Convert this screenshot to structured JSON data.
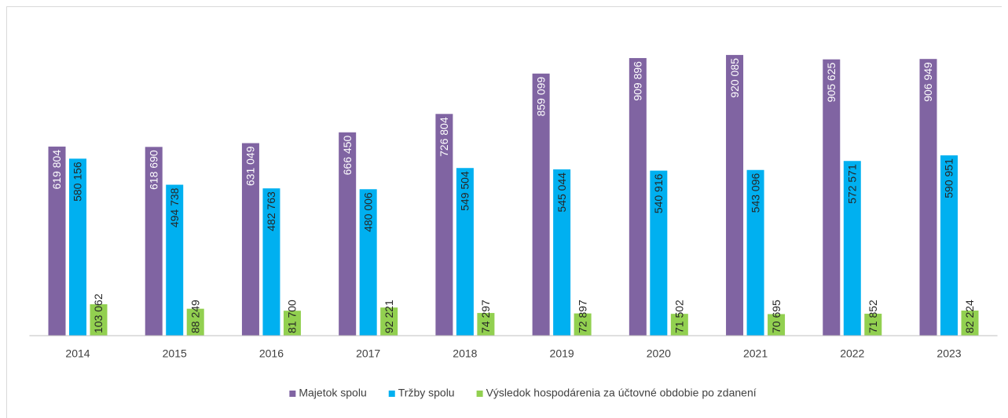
{
  "chart_data": {
    "type": "bar",
    "categories": [
      "2014",
      "2015",
      "2016",
      "2017",
      "2018",
      "2019",
      "2020",
      "2021",
      "2022",
      "2023"
    ],
    "series": [
      {
        "name": "Majetok spolu",
        "color": "#8064a2",
        "values": [
          619804,
          618690,
          631049,
          666450,
          726804,
          859099,
          909896,
          920085,
          905625,
          906949
        ],
        "value_labels": [
          "619 804",
          "618 690",
          "631 049",
          "666 450",
          "726 804",
          "859 099",
          "909 896",
          "920 085",
          "905 625",
          "906 949"
        ]
      },
      {
        "name": "Tržby spolu",
        "color": "#00b0f0",
        "values": [
          580156,
          494738,
          482763,
          480006,
          549504,
          545044,
          540916,
          543096,
          572571,
          590951
        ],
        "value_labels": [
          "580 156",
          "494 738",
          "482 763",
          "480 006",
          "549 504",
          "545 044",
          "540 916",
          "543 096",
          "572 571",
          "590 951"
        ]
      },
      {
        "name": "Výsledok hospodárenia za účtovné obdobie po zdanení",
        "color": "#92d050",
        "values": [
          103062,
          88249,
          81700,
          92221,
          74297,
          72897,
          71502,
          70695,
          71852,
          82224
        ],
        "value_labels": [
          "103 062",
          "88 249",
          "81 700",
          "92 221",
          "74 297",
          "72 897",
          "71 502",
          "70 695",
          "71 852",
          "82 224"
        ]
      }
    ],
    "ylim": [
      0,
      1000000
    ],
    "legend": "bottom"
  }
}
